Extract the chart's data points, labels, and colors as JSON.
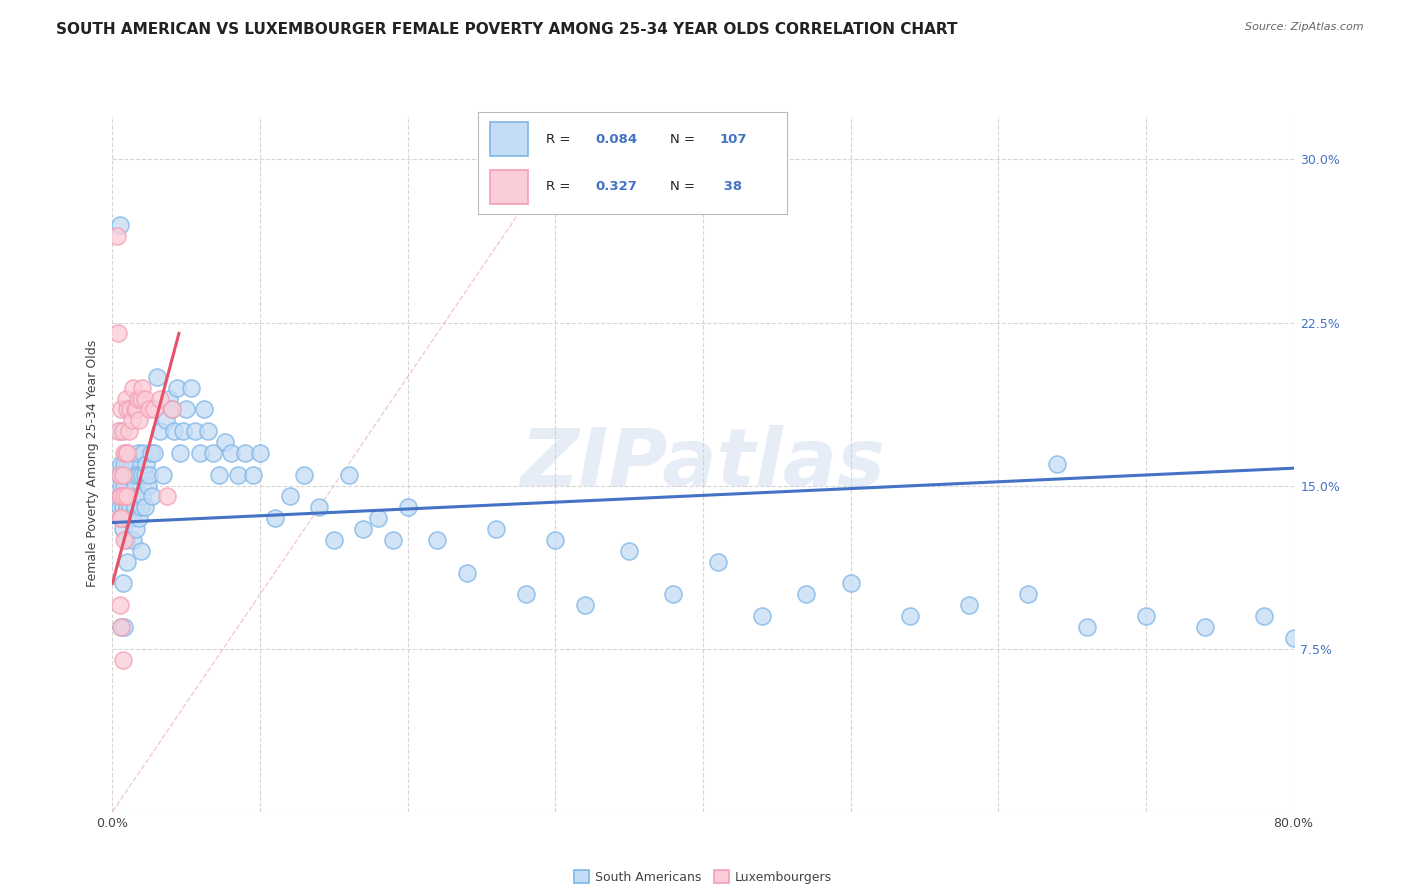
{
  "title": "SOUTH AMERICAN VS LUXEMBOURGER FEMALE POVERTY AMONG 25-34 YEAR OLDS CORRELATION CHART",
  "source": "Source: ZipAtlas.com",
  "ylabel": "Female Poverty Among 25-34 Year Olds",
  "xlim": [
    0.0,
    0.8
  ],
  "ylim": [
    0.0,
    0.32
  ],
  "x_ticks": [
    0.0,
    0.1,
    0.2,
    0.3,
    0.4,
    0.5,
    0.6,
    0.7,
    0.8
  ],
  "y_ticks": [
    0.0,
    0.075,
    0.15,
    0.225,
    0.3
  ],
  "y_tick_labels_right": [
    "",
    "7.5%",
    "15.0%",
    "22.5%",
    "30.0%"
  ],
  "R_blue": "0.084",
  "N_blue": "107",
  "R_pink": "0.327",
  "N_pink": " 38",
  "blue_face_color": "#C5DCF5",
  "blue_edge_color": "#7EB6E8",
  "pink_face_color": "#FBCDD8",
  "pink_edge_color": "#F4A0B5",
  "blue_line_color": "#4472C4",
  "pink_line_color": "#E8506A",
  "ref_line_color": "#E8A0AA",
  "grid_color": "#CCCCCC",
  "watermark": "ZIPatlas",
  "legend_items": [
    "South Americans",
    "Luxembourgers"
  ],
  "title_fontsize": 11,
  "source_fontsize": 8,
  "axis_label_fontsize": 9,
  "tick_fontsize": 9,
  "legend_fontsize": 9,
  "blue_x": [
    0.005,
    0.005,
    0.005,
    0.006,
    0.006,
    0.006,
    0.007,
    0.007,
    0.007,
    0.008,
    0.008,
    0.008,
    0.009,
    0.009,
    0.01,
    0.01,
    0.01,
    0.01,
    0.01,
    0.012,
    0.012,
    0.013,
    0.013,
    0.014,
    0.014,
    0.015,
    0.015,
    0.016,
    0.016,
    0.017,
    0.017,
    0.018,
    0.018,
    0.019,
    0.019,
    0.02,
    0.02,
    0.021,
    0.022,
    0.022,
    0.023,
    0.024,
    0.025,
    0.026,
    0.027,
    0.028,
    0.03,
    0.032,
    0.034,
    0.036,
    0.038,
    0.04,
    0.042,
    0.044,
    0.046,
    0.048,
    0.05,
    0.053,
    0.056,
    0.059,
    0.062,
    0.065,
    0.068,
    0.072,
    0.076,
    0.08,
    0.085,
    0.09,
    0.095,
    0.1,
    0.11,
    0.12,
    0.13,
    0.14,
    0.15,
    0.16,
    0.17,
    0.18,
    0.19,
    0.2,
    0.22,
    0.24,
    0.26,
    0.28,
    0.3,
    0.32,
    0.35,
    0.38,
    0.41,
    0.44,
    0.47,
    0.5,
    0.54,
    0.58,
    0.62,
    0.66,
    0.7,
    0.74,
    0.78,
    0.8,
    0.005,
    0.005,
    0.006,
    0.007,
    0.008,
    0.008,
    0.64
  ],
  "blue_y": [
    0.14,
    0.145,
    0.155,
    0.135,
    0.15,
    0.16,
    0.14,
    0.155,
    0.13,
    0.15,
    0.145,
    0.135,
    0.155,
    0.125,
    0.14,
    0.16,
    0.135,
    0.115,
    0.165,
    0.14,
    0.155,
    0.145,
    0.135,
    0.16,
    0.125,
    0.15,
    0.14,
    0.155,
    0.13,
    0.145,
    0.165,
    0.135,
    0.155,
    0.14,
    0.12,
    0.155,
    0.145,
    0.165,
    0.155,
    0.14,
    0.16,
    0.15,
    0.155,
    0.165,
    0.145,
    0.165,
    0.2,
    0.175,
    0.155,
    0.18,
    0.19,
    0.185,
    0.175,
    0.195,
    0.165,
    0.175,
    0.185,
    0.195,
    0.175,
    0.165,
    0.185,
    0.175,
    0.165,
    0.155,
    0.17,
    0.165,
    0.155,
    0.165,
    0.155,
    0.165,
    0.135,
    0.145,
    0.155,
    0.14,
    0.125,
    0.155,
    0.13,
    0.135,
    0.125,
    0.14,
    0.125,
    0.11,
    0.13,
    0.1,
    0.125,
    0.095,
    0.12,
    0.1,
    0.115,
    0.09,
    0.1,
    0.105,
    0.09,
    0.095,
    0.1,
    0.085,
    0.09,
    0.085,
    0.09,
    0.08,
    0.27,
    0.175,
    0.085,
    0.105,
    0.085,
    0.16,
    0.16
  ],
  "pink_x": [
    0.003,
    0.004,
    0.004,
    0.005,
    0.005,
    0.005,
    0.005,
    0.006,
    0.006,
    0.006,
    0.006,
    0.007,
    0.007,
    0.007,
    0.008,
    0.008,
    0.008,
    0.009,
    0.009,
    0.01,
    0.01,
    0.01,
    0.011,
    0.012,
    0.013,
    0.014,
    0.015,
    0.016,
    0.017,
    0.018,
    0.019,
    0.02,
    0.022,
    0.025,
    0.028,
    0.032,
    0.037,
    0.04
  ],
  "pink_y": [
    0.265,
    0.22,
    0.175,
    0.155,
    0.145,
    0.135,
    0.095,
    0.185,
    0.145,
    0.135,
    0.085,
    0.175,
    0.155,
    0.07,
    0.165,
    0.145,
    0.125,
    0.19,
    0.165,
    0.185,
    0.165,
    0.145,
    0.175,
    0.185,
    0.18,
    0.195,
    0.185,
    0.185,
    0.19,
    0.18,
    0.19,
    0.195,
    0.19,
    0.185,
    0.185,
    0.19,
    0.145,
    0.185
  ]
}
